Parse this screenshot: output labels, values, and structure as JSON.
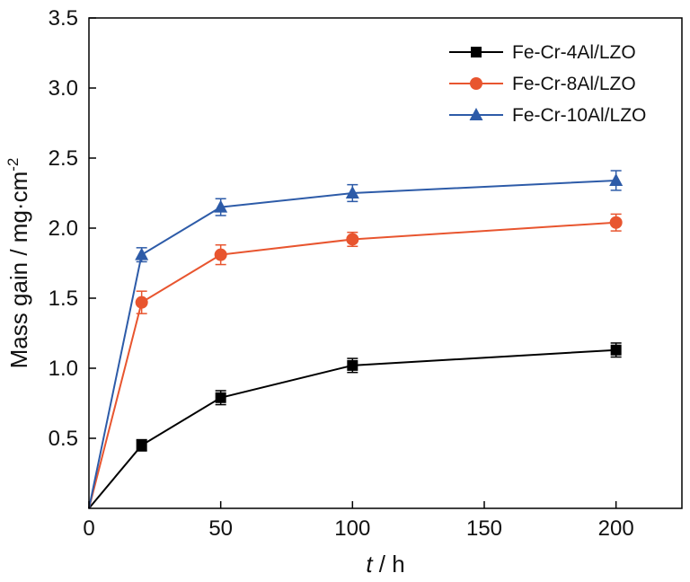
{
  "chart_data": {
    "type": "line",
    "xlabel_italic": "t",
    "xlabel_rest": " / h",
    "ylabel_main": "Mass gain / mg·cm",
    "ylabel_sup": "-2",
    "xlim": [
      0,
      225
    ],
    "ylim": [
      0,
      3.5
    ],
    "x_ticks": [
      0,
      50,
      100,
      150,
      200
    ],
    "x_tick_labels": [
      "0",
      "50",
      "100",
      "150",
      "200"
    ],
    "y_ticks": [
      0.5,
      1.0,
      1.5,
      2.0,
      2.5,
      3.0,
      3.5
    ],
    "y_tick_labels": [
      "0.5",
      "1.0",
      "1.5",
      "2.0",
      "2.5",
      "3.0",
      "3.5"
    ],
    "grid": false,
    "legend_position": "top-right",
    "x": [
      0,
      20,
      50,
      100,
      200
    ],
    "series": [
      {
        "name": "Fe-Cr-4Al/LZO",
        "color": "#000000",
        "marker": "square",
        "values": [
          0,
          0.45,
          0.79,
          1.02,
          1.13
        ],
        "errors": [
          0,
          0.04,
          0.05,
          0.05,
          0.05
        ]
      },
      {
        "name": "Fe-Cr-8Al/LZO",
        "color": "#e8552f",
        "marker": "circle",
        "values": [
          0,
          1.47,
          1.81,
          1.92,
          2.04
        ],
        "errors": [
          0,
          0.08,
          0.07,
          0.05,
          0.06
        ]
      },
      {
        "name": "Fe-Cr-10Al/LZO",
        "color": "#2d5ba8",
        "marker": "triangle",
        "values": [
          0,
          1.81,
          2.15,
          2.25,
          2.34
        ],
        "errors": [
          0,
          0.05,
          0.06,
          0.06,
          0.07
        ]
      }
    ]
  }
}
